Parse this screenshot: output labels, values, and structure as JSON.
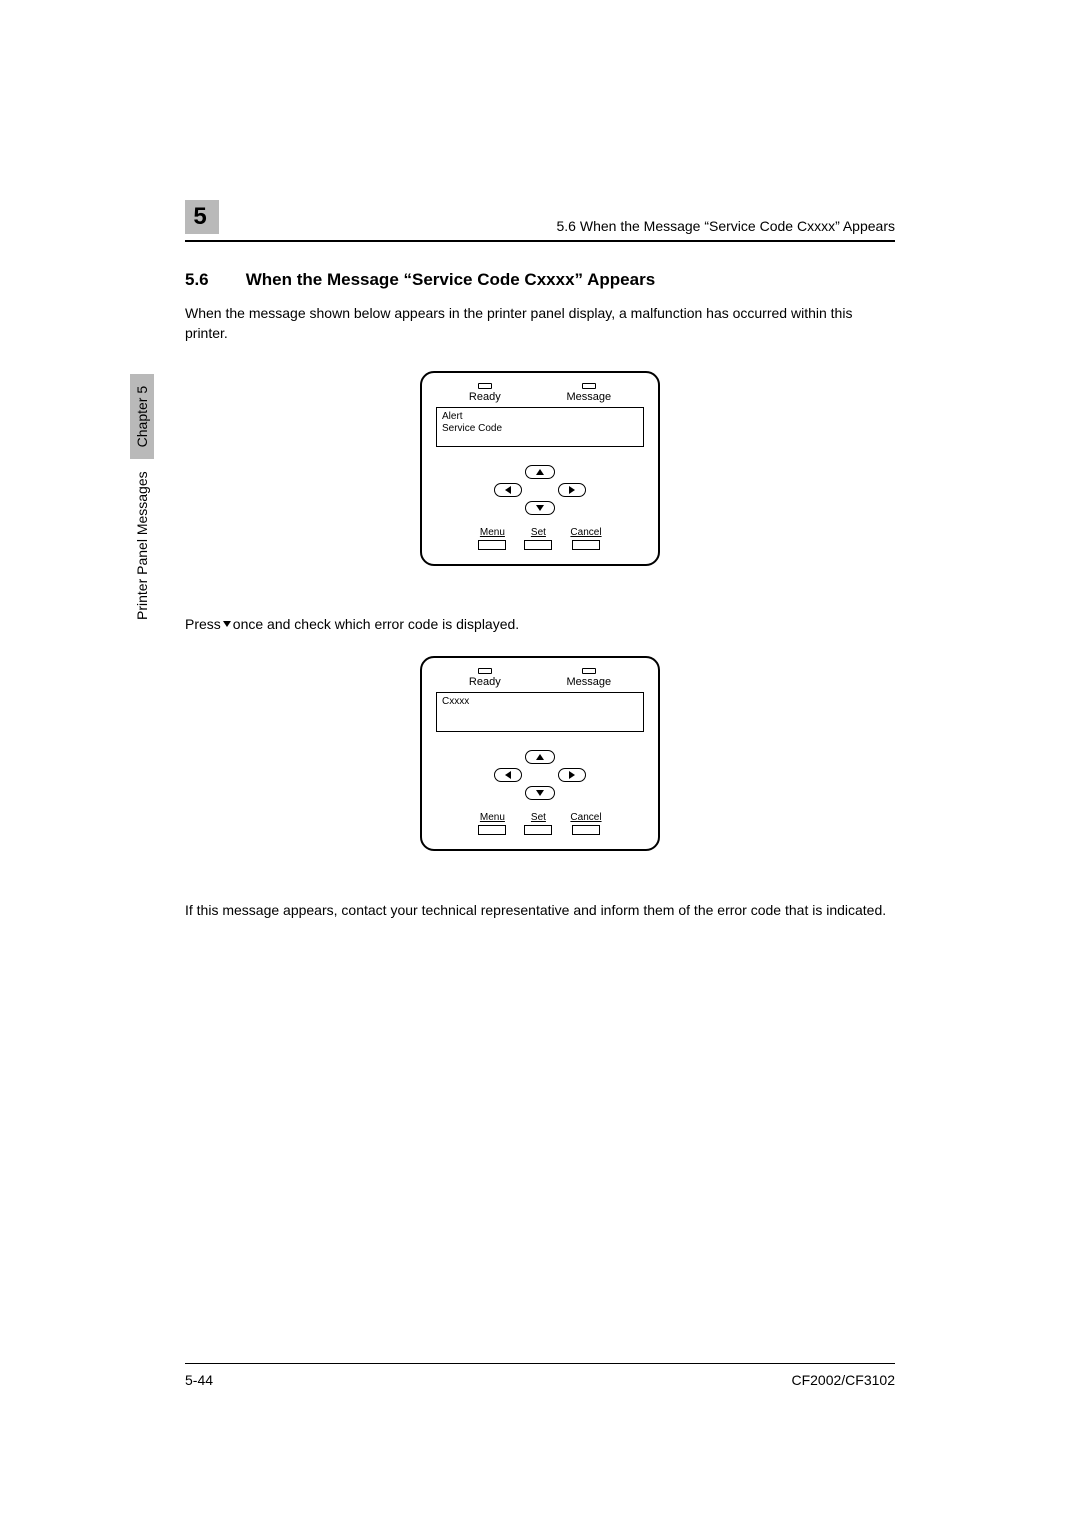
{
  "chapter_number": "5",
  "header_running": "5.6 When the Message “Service Code Cxxxx” Appears",
  "section": {
    "num": "5.6",
    "title": "When the Message “Service Code Cxxxx” Appears"
  },
  "intro": "When the message shown below appears in the printer panel display, a malfunction has occurred within this printer.",
  "panel": {
    "led_ready": "Ready",
    "led_message": "Message",
    "lcd1_line1": "Alert",
    "lcd1_line2": "Service Code",
    "lcd2_line1": "Cxxxx",
    "btn_menu": "Menu",
    "btn_set": "Set",
    "btn_cancel": "Cancel"
  },
  "press_before": "Press",
  "press_after": "once and check which error code is displayed.",
  "closing": "If this message appears, contact your technical representative and inform them of the error code that is indicated.",
  "side": {
    "text": "Printer Panel Messages",
    "chapter": "Chapter 5"
  },
  "footer": {
    "page": "5-44",
    "model": "CF2002/CF3102"
  }
}
